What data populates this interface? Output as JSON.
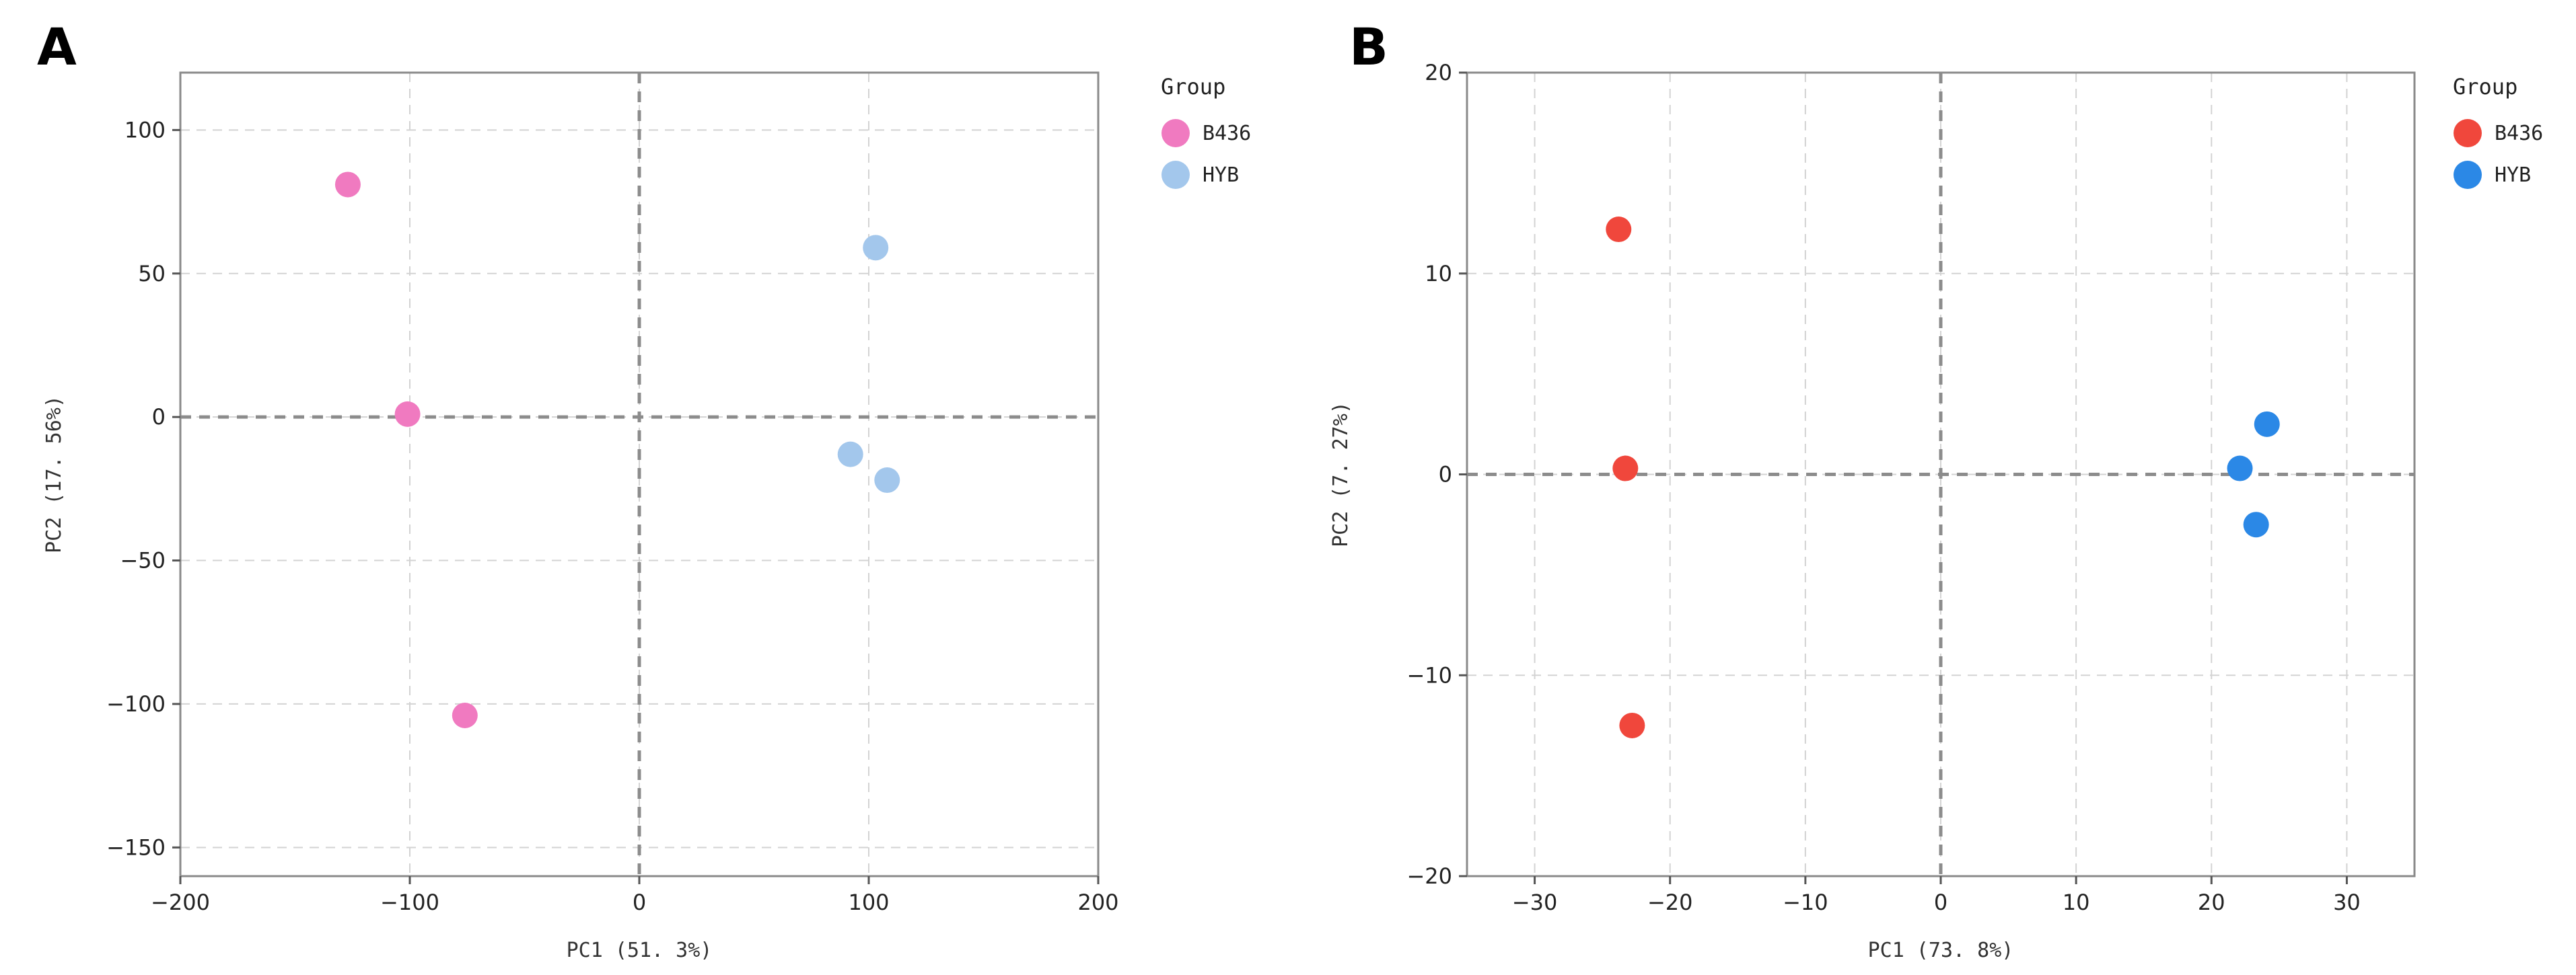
{
  "chart_data": [
    {
      "type": "scatter",
      "panel": "A",
      "xlabel": "PC1 (51. 3%)",
      "ylabel": "PC2 (17. 56%)",
      "xlim": [
        -200,
        200
      ],
      "ylim": [
        -160,
        120
      ],
      "xticks": [
        -200,
        -100,
        0,
        100,
        200
      ],
      "xtick_labels": [
        "−200",
        "−100",
        "0",
        "100",
        "200"
      ],
      "yticks": [
        100,
        50,
        0,
        -50,
        -100,
        -150
      ],
      "ytick_labels": [
        "100",
        "50",
        "0",
        "−50",
        "−100",
        "−150"
      ],
      "grid": true,
      "zero_lines": true,
      "legend": {
        "title": "Group",
        "placement": "right-outside-top"
      },
      "series": [
        {
          "name": "B436",
          "color": "#f07ac0",
          "points": [
            {
              "x": -127,
              "y": 81
            },
            {
              "x": -101,
              "y": 1
            },
            {
              "x": -76,
              "y": -104
            }
          ]
        },
        {
          "name": "HYB",
          "color": "#a3c7ec",
          "points": [
            {
              "x": 103,
              "y": 59
            },
            {
              "x": 92,
              "y": -13
            },
            {
              "x": 108,
              "y": -22
            }
          ]
        }
      ]
    },
    {
      "type": "scatter",
      "panel": "B",
      "xlabel": "PC1 (73. 8%)",
      "ylabel": "PC2 (7. 27%)",
      "xlim": [
        -35,
        35
      ],
      "ylim": [
        -20,
        20
      ],
      "xticks": [
        -30,
        -20,
        -10,
        0,
        10,
        20,
        30
      ],
      "xtick_labels": [
        "−30",
        "−20",
        "−10",
        "0",
        "10",
        "20",
        "30"
      ],
      "yticks": [
        20,
        10,
        0,
        -10,
        -20
      ],
      "ytick_labels": [
        "20",
        "10",
        "0",
        "−10",
        "−20"
      ],
      "grid": true,
      "zero_lines": true,
      "legend": {
        "title": "Group",
        "placement": "right-outside-top"
      },
      "series": [
        {
          "name": "B436",
          "color": "#f0473c",
          "points": [
            {
              "x": -23.8,
              "y": 12.2
            },
            {
              "x": -23.3,
              "y": 0.3
            },
            {
              "x": -22.8,
              "y": -12.5
            }
          ]
        },
        {
          "name": "HYB",
          "color": "#2b88e6",
          "points": [
            {
              "x": 24.1,
              "y": 2.5
            },
            {
              "x": 22.1,
              "y": 0.3
            },
            {
              "x": 23.3,
              "y": -2.5
            }
          ]
        }
      ]
    }
  ]
}
